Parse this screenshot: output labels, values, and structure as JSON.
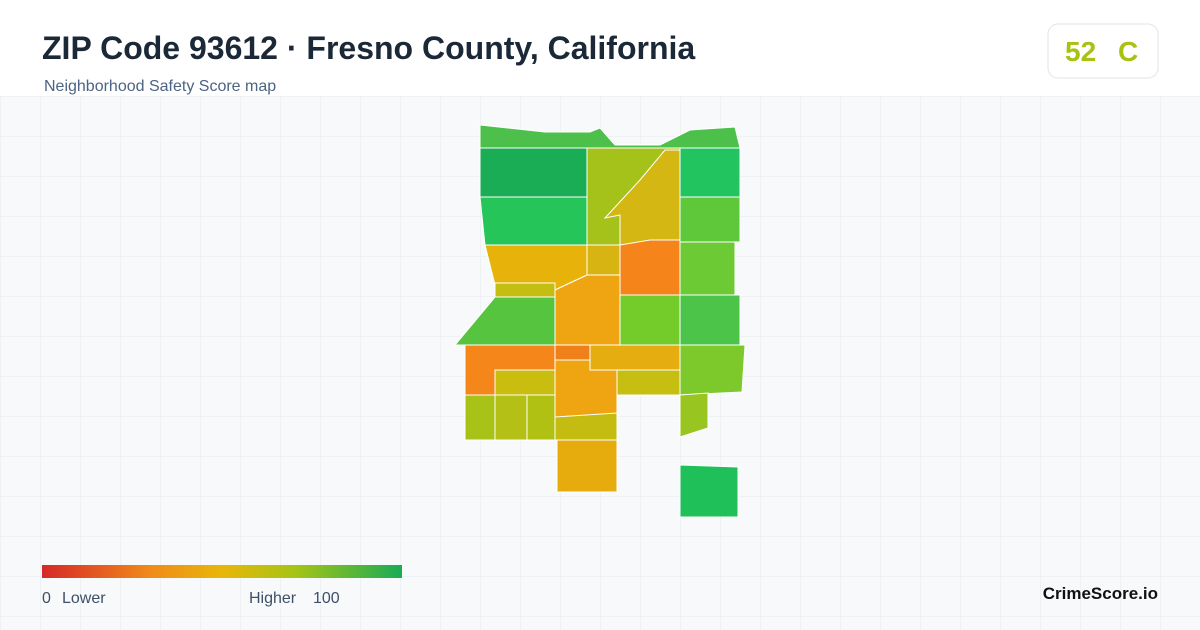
{
  "header": {
    "title": "ZIP Code 93612 · Fresno County, California",
    "subtitle": "Neighborhood Safety Score map"
  },
  "score_badge": {
    "score": 52,
    "grade": "C"
  },
  "legend": {
    "min": 0,
    "min_label": "Lower",
    "max_label": "Higher",
    "max": 100
  },
  "brand": "CrimeScore.io"
}
